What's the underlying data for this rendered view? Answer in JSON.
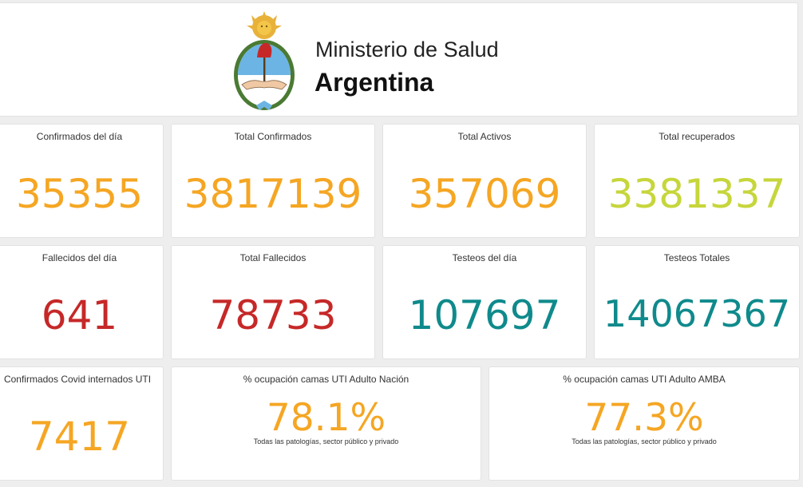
{
  "header": {
    "ministry": "Ministerio de Salud",
    "country": "Argentina",
    "logo": "argentina-coat-of-arms"
  },
  "colors": {
    "orange": "#f5a623",
    "yellow_green": "#c6d63b",
    "red": "#c62828",
    "teal": "#0f8a8c",
    "card_bg": "#ffffff",
    "page_bg": "#eeeeee"
  },
  "row1": {
    "confirmados_dia": {
      "label": "Confirmados del día",
      "value": "35355"
    },
    "total_confirmados": {
      "label": "Total Confirmados",
      "value": "3817139"
    },
    "total_activos": {
      "label": "Total Activos",
      "value": "357069"
    },
    "total_recuperados": {
      "label": "Total recuperados",
      "value": "3381337"
    }
  },
  "row2": {
    "fallecidos_dia": {
      "label": "Fallecidos del día",
      "value": "641"
    },
    "total_fallecidos": {
      "label": "Total Fallecidos",
      "value": "78733"
    },
    "testeos_dia": {
      "label": "Testeos del día",
      "value": "107697"
    },
    "testeos_totales": {
      "label": "Testeos Totales",
      "value": "14067367"
    }
  },
  "row3": {
    "internados_uti": {
      "label": "Confirmados Covid internados UTI",
      "value": "7417"
    },
    "ocupacion_nacion": {
      "label": "% ocupación camas UTI Adulto Nación",
      "value": "78.1%",
      "note": "Todas las patologías, sector público y privado"
    },
    "ocupacion_amba": {
      "label": "% ocupación camas UTI Adulto AMBA",
      "value": "77.3%",
      "note": "Todas las patologías, sector público y privado"
    }
  }
}
